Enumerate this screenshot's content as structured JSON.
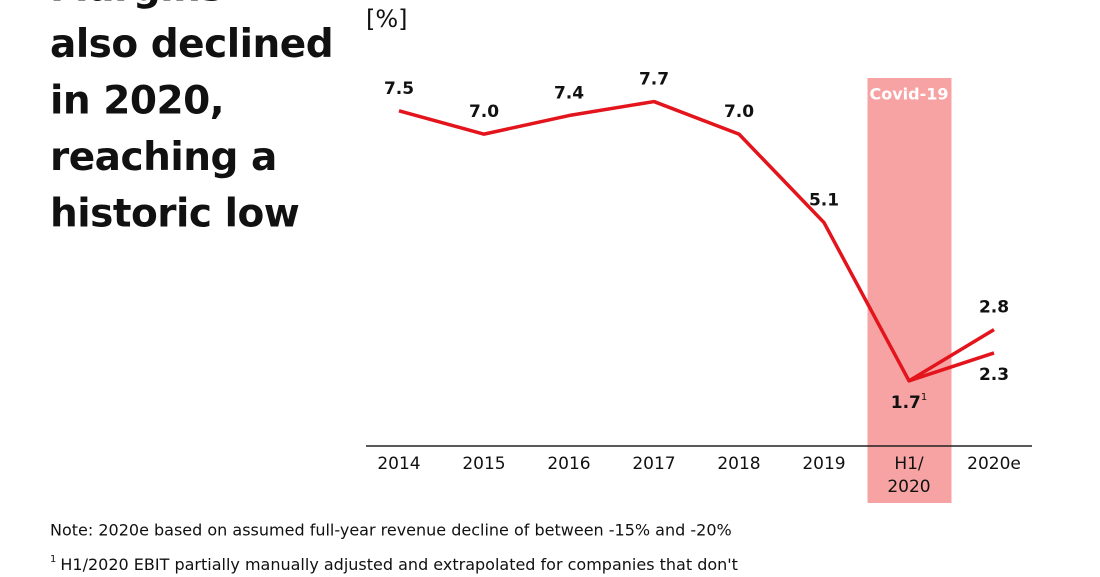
{
  "chart_data": {
    "type": "line",
    "title_lines": [
      "Margins",
      "also declined",
      "in 2020,",
      "reaching a",
      "historic low"
    ],
    "y_label": "[%]",
    "categories": [
      "2014",
      "2015",
      "2016",
      "2017",
      "2018",
      "2019",
      "H1/\n2020",
      "2020e"
    ],
    "series": [
      {
        "color": "#e3141c",
        "values": [
          7.5,
          7.0,
          7.4,
          7.7,
          7.0,
          5.1,
          1.7,
          2.8
        ],
        "value_labels": [
          "7.5",
          "7.0",
          "7.4",
          "7.7",
          "7.0",
          "5.1",
          "1.7",
          "2.8"
        ]
      },
      {
        "color": "#e3141c",
        "values": [
          null,
          null,
          null,
          null,
          null,
          null,
          1.7,
          2.3
        ],
        "value_labels": [
          null,
          null,
          null,
          null,
          null,
          null,
          null,
          "2.3"
        ]
      }
    ],
    "footnote_marker": "1",
    "footnote_at": 6,
    "highlight": {
      "category_index": 6,
      "label": "Covid-19",
      "color": "#f7a3a3"
    },
    "ylim": [
      0.3,
      8
    ],
    "notes": [
      "Note: 2020e based on assumed full-year revenue decline of between -15% and -20%",
      "H1/2020 EBIT partially manually adjusted and extrapolated for companies that don't"
    ]
  }
}
